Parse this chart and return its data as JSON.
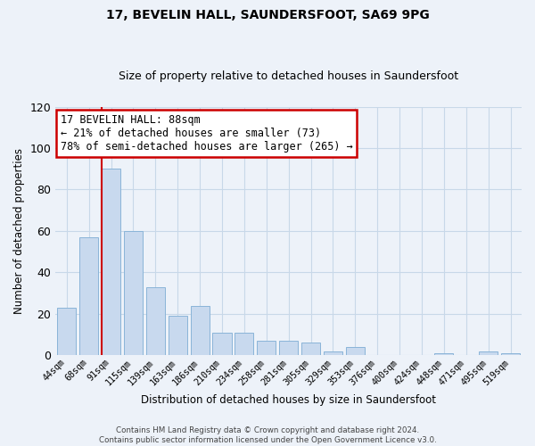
{
  "title": "17, BEVELIN HALL, SAUNDERSFOOT, SA69 9PG",
  "subtitle": "Size of property relative to detached houses in Saundersfoot",
  "xlabel": "Distribution of detached houses by size in Saundersfoot",
  "ylabel": "Number of detached properties",
  "bar_labels": [
    "44sqm",
    "68sqm",
    "91sqm",
    "115sqm",
    "139sqm",
    "163sqm",
    "186sqm",
    "210sqm",
    "234sqm",
    "258sqm",
    "281sqm",
    "305sqm",
    "329sqm",
    "353sqm",
    "376sqm",
    "400sqm",
    "424sqm",
    "448sqm",
    "471sqm",
    "495sqm",
    "519sqm"
  ],
  "bar_values": [
    23,
    57,
    90,
    60,
    33,
    19,
    24,
    11,
    11,
    7,
    7,
    6,
    2,
    4,
    0,
    0,
    0,
    1,
    0,
    2,
    1
  ],
  "bar_color": "#c8d9ee",
  "bar_edge_color": "#8ab4d8",
  "highlight_index": 2,
  "highlight_line_color": "#cc0000",
  "ylim": [
    0,
    120
  ],
  "yticks": [
    0,
    20,
    40,
    60,
    80,
    100,
    120
  ],
  "annotation_title": "17 BEVELIN HALL: 88sqm",
  "annotation_line1": "← 21% of detached houses are smaller (73)",
  "annotation_line2": "78% of semi-detached houses are larger (265) →",
  "annotation_box_color": "#ffffff",
  "annotation_box_edge": "#cc0000",
  "footer_line1": "Contains HM Land Registry data © Crown copyright and database right 2024.",
  "footer_line2": "Contains public sector information licensed under the Open Government Licence v3.0.",
  "grid_color": "#c8d8e8",
  "background_color": "#edf2f9"
}
